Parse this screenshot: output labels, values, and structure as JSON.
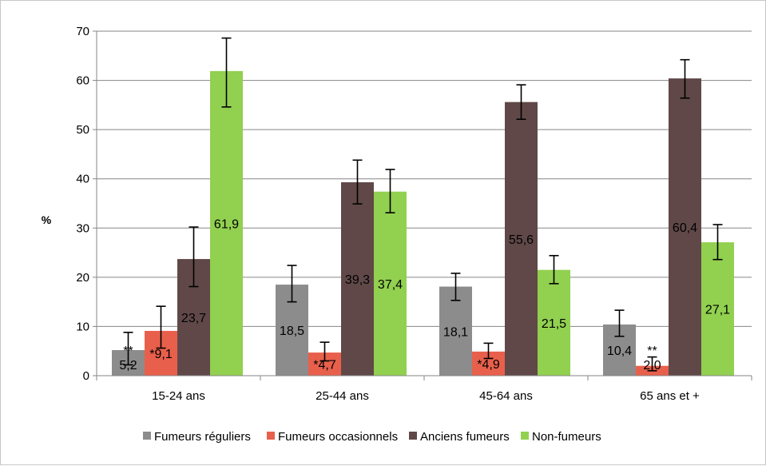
{
  "chart_data": {
    "type": "bar",
    "title": "",
    "xlabel": "",
    "ylabel": "%",
    "ylim": [
      0,
      70
    ],
    "yticks": [
      0,
      10,
      20,
      30,
      40,
      50,
      60,
      70
    ],
    "grid": true,
    "legend_position": "bottom",
    "categories": [
      "15-24 ans",
      "25-44 ans",
      "45-64 ans",
      "65 ans et +"
    ],
    "series": [
      {
        "name": "Fumeurs réguliers",
        "color": "#8c8c8c",
        "values": [
          5.2,
          18.5,
          18.1,
          10.4
        ],
        "labels": [
          "**\n5,2",
          "18,5",
          "18,1",
          "10,4"
        ],
        "err_low": [
          2.2,
          15.0,
          15.3,
          8.0
        ],
        "err_high": [
          8.8,
          22.4,
          20.8,
          13.3
        ]
      },
      {
        "name": "Fumeurs occasionnels",
        "color": "#e8604c",
        "values": [
          9.1,
          4.7,
          4.9,
          2.0
        ],
        "labels": [
          "*9,1",
          "*4,7",
          "*4,9",
          "**\n2,0"
        ],
        "err_low": [
          5.6,
          3.0,
          3.5,
          1.0
        ],
        "err_high": [
          14.1,
          6.8,
          6.6,
          3.8
        ]
      },
      {
        "name": "Anciens fumeurs",
        "color": "#604848",
        "values": [
          23.7,
          39.3,
          55.6,
          60.4
        ],
        "labels": [
          "23,7",
          "39,3",
          "55,6",
          "60,4"
        ],
        "err_low": [
          18.1,
          34.9,
          52.1,
          56.4
        ],
        "err_high": [
          30.2,
          43.8,
          59.1,
          64.2
        ]
      },
      {
        "name": "Non-fumeurs",
        "color": "#92d050",
        "values": [
          61.9,
          37.4,
          21.5,
          27.1
        ],
        "labels": [
          "61,9",
          "37,4",
          "21,5",
          "27,1"
        ],
        "err_low": [
          54.6,
          33.1,
          18.7,
          23.6
        ],
        "err_high": [
          68.6,
          41.9,
          24.4,
          30.7
        ]
      }
    ]
  }
}
